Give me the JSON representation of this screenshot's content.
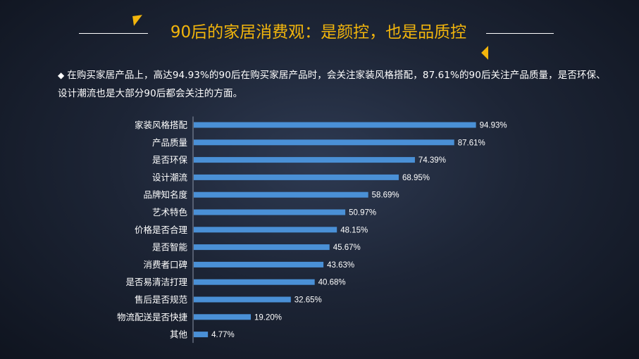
{
  "slide": {
    "title": "90后的家居消费观：是颜控，也是品质控",
    "summary": "在购买家居产品上，高达94.93%的90后在购买家居产品时，会关注家装风格搭配，87.61%的90后关注产品质量，是否环保、设计潮流也是大部分90后都会关注的方面。",
    "bullet": "◆",
    "accent_color": "#f2b50c",
    "bar_color": "#4a90d6"
  },
  "chart_data": {
    "type": "bar",
    "orientation": "horizontal",
    "title": "",
    "xlabel": "",
    "ylabel": "",
    "xlim": [
      0,
      100
    ],
    "grid": false,
    "legend": "none",
    "categories": [
      "家装风格搭配",
      "产品质量",
      "是否环保",
      "设计潮流",
      "品牌知名度",
      "艺术特色",
      "价格是否合理",
      "是否智能",
      "消费者口碑",
      "是否易清洁打理",
      "售后是否规范",
      "物流配送是否快捷",
      "其他"
    ],
    "values": [
      94.93,
      87.61,
      74.39,
      68.95,
      58.69,
      50.97,
      48.15,
      45.67,
      43.63,
      40.68,
      32.65,
      19.2,
      4.77
    ],
    "value_labels": [
      "94.93%",
      "87.61%",
      "74.39%",
      "68.95%",
      "58.69%",
      "50.97%",
      "48.15%",
      "45.67%",
      "43.63%",
      "40.68%",
      "32.65%",
      "19.20%",
      "4.77%"
    ]
  }
}
